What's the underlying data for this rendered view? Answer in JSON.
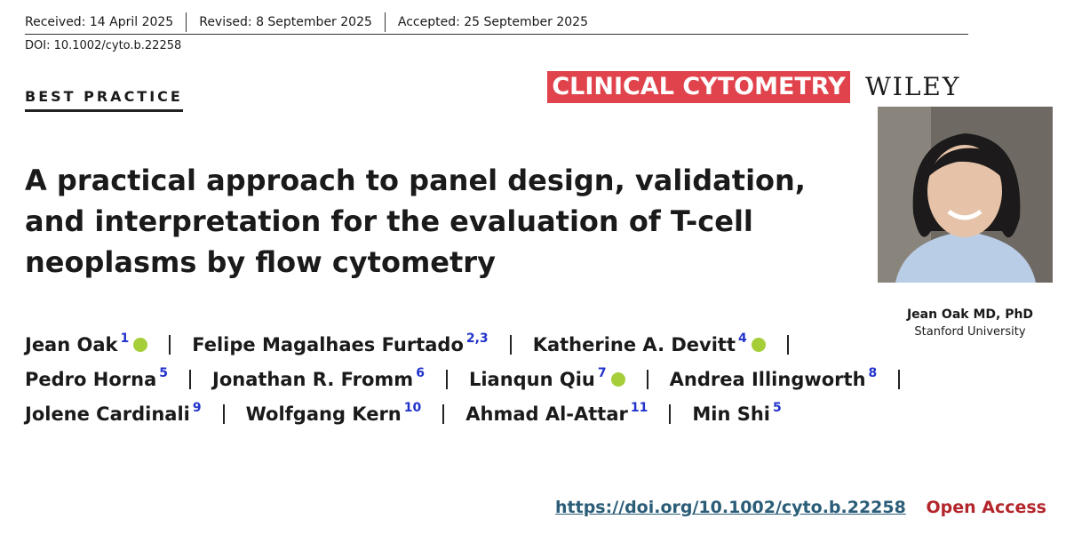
{
  "dates": {
    "received": "Received: 14 April 2025",
    "revised": "Revised: 8 September 2025",
    "accepted": "Accepted: 25 September 2025"
  },
  "doi": "DOI: 10.1002/cyto.b.22258",
  "article_type": "BEST PRACTICE",
  "journal": "CLINICAL CYTOMETRY",
  "publisher": "WILEY",
  "title": "A practical approach to panel design, validation, and interpretation for the evaluation of T-cell neoplasms by flow cytometry",
  "author_lines": [
    [
      {
        "name": "Jean Oak",
        "aff": "1",
        "orcid": true
      },
      {
        "name": "Felipe Magalhaes Furtado",
        "aff": "2,3",
        "orcid": false
      },
      {
        "name": "Katherine A. Devitt",
        "aff": "4",
        "orcid": true
      }
    ],
    [
      {
        "name": "Pedro Horna",
        "aff": "5",
        "orcid": false
      },
      {
        "name": "Jonathan R. Fromm",
        "aff": "6",
        "orcid": false
      },
      {
        "name": "Lianqun Qiu",
        "aff": "7",
        "orcid": true
      },
      {
        "name": "Andrea Illingworth",
        "aff": "8",
        "orcid": false
      }
    ],
    [
      {
        "name": "Jolene Cardinali",
        "aff": "9",
        "orcid": false
      },
      {
        "name": "Wolfgang Kern",
        "aff": "10",
        "orcid": false
      },
      {
        "name": "Ahmad Al-Attar",
        "aff": "11",
        "orcid": false
      },
      {
        "name": "Min Shi",
        "aff": "5",
        "orcid": false
      }
    ]
  ],
  "presenter": {
    "name": "Jean Oak MD, PhD",
    "affiliation": "Stanford University"
  },
  "footer": {
    "url": "https://doi.org/10.1002/cyto.b.22258",
    "access": "Open Access"
  }
}
